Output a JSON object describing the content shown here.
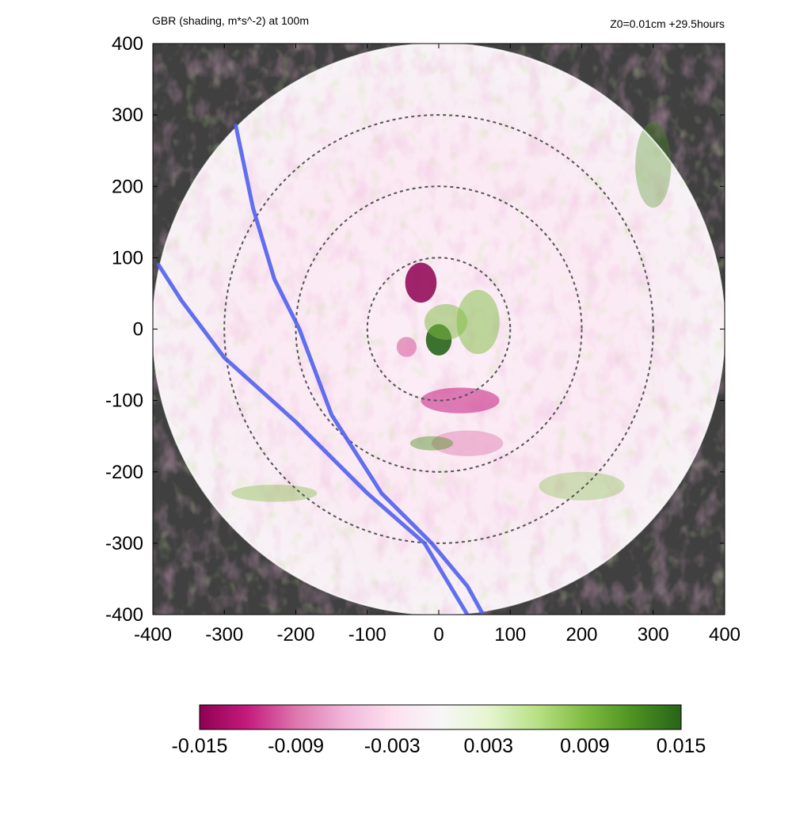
{
  "chart_data": {
    "type": "heatmap",
    "title": "GBR (shading, m*s^-2) at 100m",
    "subtitle": "Z0=0.01cm  +29.5hours",
    "xlabel": "",
    "ylabel": "",
    "xlim": [
      -400,
      400
    ],
    "ylim": [
      -400,
      400
    ],
    "x_ticks": [
      "-400",
      "-300",
      "-200",
      "-100",
      "0",
      "100",
      "200",
      "300",
      "400"
    ],
    "y_ticks": [
      "400",
      "300",
      "200",
      "100",
      "0",
      "-100",
      "-200",
      "-300",
      "-400"
    ],
    "domain_radius": 400,
    "range_rings": [
      100,
      200,
      300
    ],
    "colorbar": {
      "min": -0.015,
      "max": 0.015,
      "ticks": [
        "-0.015",
        "-0.009",
        "-0.003",
        "0.003",
        "0.009",
        "0.015"
      ],
      "colors": [
        "#8e0152",
        "#c51b7d",
        "#de77ae",
        "#f1b6da",
        "#fde0ef",
        "#f7f7f7",
        "#e6f5d0",
        "#b8e186",
        "#7fbc41",
        "#4d9221",
        "#276419"
      ]
    },
    "tracks": [
      {
        "points": [
          [
            -284,
            285
          ],
          [
            -260,
            170
          ],
          [
            -230,
            70
          ],
          [
            -195,
            0
          ],
          [
            -150,
            -120
          ],
          [
            -80,
            -230
          ],
          [
            -10,
            -300
          ],
          [
            40,
            -360
          ],
          [
            62,
            -400
          ]
        ]
      },
      {
        "points": [
          [
            -392,
            90
          ],
          [
            -360,
            40
          ],
          [
            -300,
            -40
          ],
          [
            -200,
            -130
          ],
          [
            -100,
            -230
          ],
          [
            -20,
            -300
          ],
          [
            40,
            -400
          ]
        ]
      }
    ],
    "colors": {
      "outside": "#404040",
      "track": "#5060ee",
      "ring": "#555555"
    }
  }
}
